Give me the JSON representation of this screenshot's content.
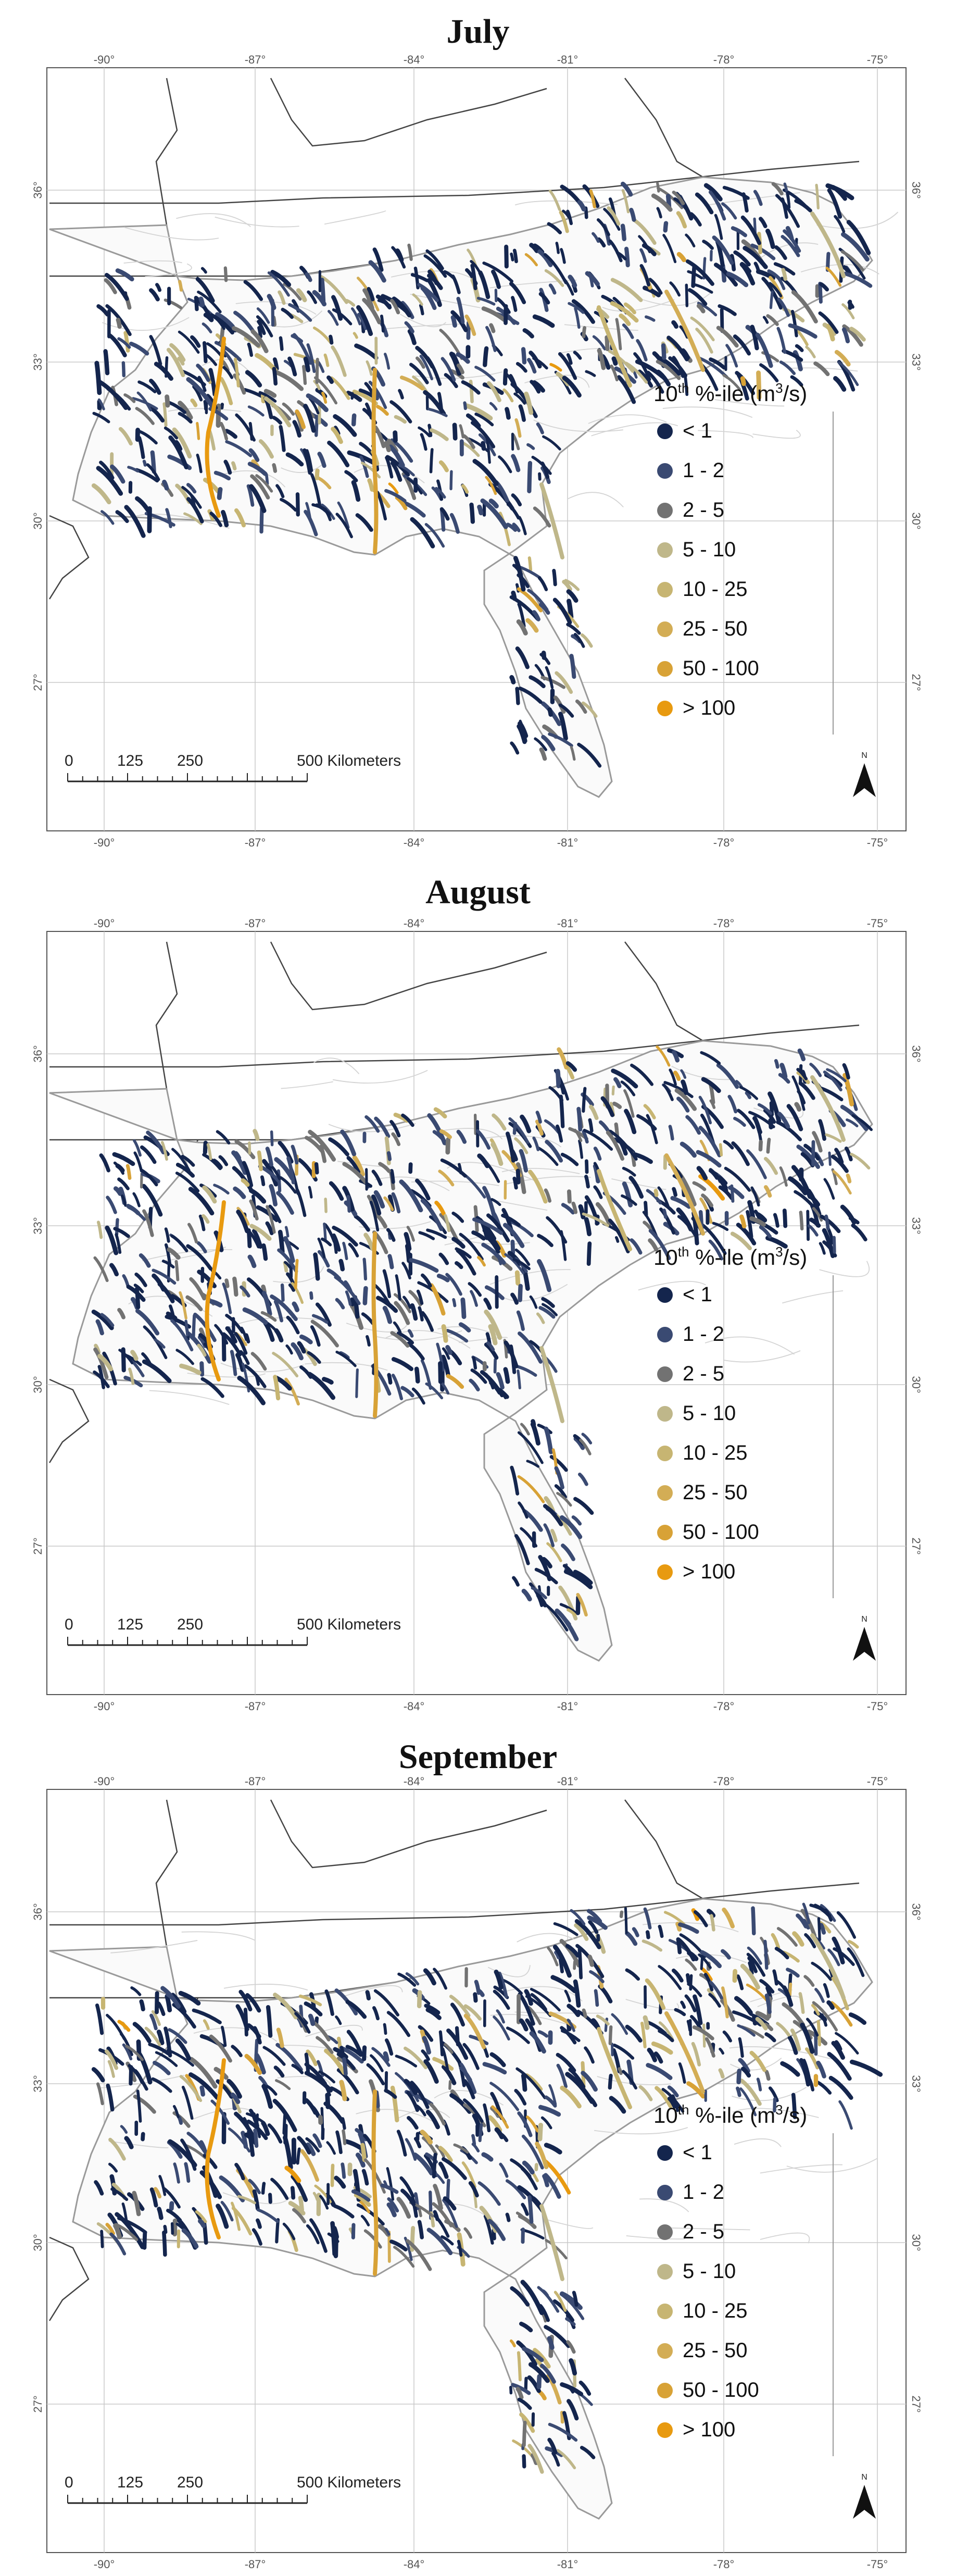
{
  "panels": [
    {
      "id": "july",
      "title": "July",
      "seed": 11
    },
    {
      "id": "august",
      "title": "August",
      "seed": 23
    },
    {
      "id": "september",
      "title": "September",
      "seed": 37
    }
  ],
  "graticule": {
    "lon_labels": [
      "-90°",
      "-87°",
      "-84°",
      "-81°",
      "-78°",
      "-75°"
    ],
    "lat_labels": [
      "36°",
      "33°",
      "30°",
      "27°"
    ]
  },
  "legend": {
    "title_base": "10",
    "title_sup": "th",
    "title_mid": " %-ile (m",
    "title_sup2": "3",
    "title_end": "/s)",
    "classes": [
      {
        "label": "< 1",
        "color": "#14254d"
      },
      {
        "label": "1 - 2",
        "color": "#3a4a72"
      },
      {
        "label": "2 - 5",
        "color": "#727272"
      },
      {
        "label": "5 - 10",
        "color": "#bfb78a"
      },
      {
        "label": "10 - 25",
        "color": "#c7b572"
      },
      {
        "label": "25 - 50",
        "color": "#d3ad55"
      },
      {
        "label": "50 - 100",
        "color": "#d8a236"
      },
      {
        "label": "> 100",
        "color": "#e89a10"
      }
    ]
  },
  "scale_bar": {
    "ticks": [
      "0",
      "125",
      "250",
      "500 Kilometers"
    ]
  },
  "north_arrow": {
    "label": "N"
  }
}
